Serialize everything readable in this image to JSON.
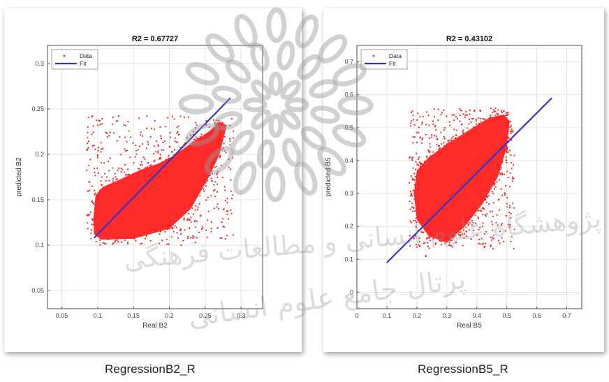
{
  "chart_data": [
    {
      "type": "scatter",
      "title": "R2 = 0.67727",
      "xlabel": "Real B2",
      "ylabel": "predicted B2",
      "xlim": [
        0.03,
        0.33
      ],
      "ylim": [
        0.03,
        0.32
      ],
      "xticks": [
        0.05,
        0.1,
        0.15,
        0.2,
        0.25,
        0.3
      ],
      "xtick_labels": [
        "0.05",
        "0.1",
        "0.15",
        "0.2",
        "0.25",
        "0.3"
      ],
      "yticks": [
        0.05,
        0.1,
        0.15,
        0.2,
        0.25,
        0.3
      ],
      "ytick_labels": [
        "0.05",
        "0.1",
        "0.15",
        "0.2",
        "0.25",
        "0.3"
      ],
      "grid": true,
      "legend_position": "top-left",
      "series": [
        {
          "name": "Data",
          "kind": "points",
          "color": "#ff1a1a",
          "cloud_outline": [
            [
              0.095,
              0.112
            ],
            [
              0.105,
              0.106
            ],
            [
              0.15,
              0.107
            ],
            [
              0.2,
              0.118
            ],
            [
              0.23,
              0.14
            ],
            [
              0.255,
              0.175
            ],
            [
              0.27,
              0.2
            ],
            [
              0.28,
              0.232
            ],
            [
              0.27,
              0.236
            ],
            [
              0.255,
              0.225
            ],
            [
              0.23,
              0.212
            ],
            [
              0.205,
              0.198
            ],
            [
              0.185,
              0.19
            ],
            [
              0.16,
              0.183
            ],
            [
              0.13,
              0.172
            ],
            [
              0.107,
              0.164
            ],
            [
              0.097,
              0.155
            ],
            [
              0.094,
              0.13
            ]
          ],
          "sample_points": [
            [
              0.27,
              0.228
            ],
            [
              0.265,
              0.233
            ],
            [
              0.258,
              0.222
            ],
            [
              0.24,
              0.205
            ],
            [
              0.2,
              0.122
            ],
            [
              0.1,
              0.118
            ]
          ]
        },
        {
          "name": "Fit",
          "kind": "line",
          "color": "#3333cc",
          "x": [
            0.095,
            0.285
          ],
          "y": [
            0.108,
            0.262
          ]
        }
      ]
    },
    {
      "type": "scatter",
      "title": "R2 = 0.43102",
      "xlabel": "Real B5",
      "ylabel": "predicted B5",
      "xlim": [
        0.0,
        0.75
      ],
      "ylim": [
        -0.05,
        0.75
      ],
      "xticks": [
        0.0,
        0.1,
        0.2,
        0.3,
        0.4,
        0.5,
        0.6,
        0.7
      ],
      "xtick_labels": [
        "0",
        "0.1",
        "0.2",
        "0.3",
        "0.4",
        "0.5",
        "0.6",
        "0.7"
      ],
      "yticks": [
        0.0,
        0.1,
        0.2,
        0.3,
        0.4,
        0.5,
        0.6,
        0.7
      ],
      "ytick_labels": [
        "0",
        "0.1",
        "0.2",
        "0.3",
        "0.4",
        "0.5",
        "0.6",
        "0.7"
      ],
      "grid": true,
      "legend_position": "top-left",
      "series": [
        {
          "name": "Data",
          "kind": "points",
          "color": "#ff1a1a",
          "cloud_outline": [
            [
              0.19,
              0.3
            ],
            [
              0.2,
              0.22
            ],
            [
              0.24,
              0.17
            ],
            [
              0.3,
              0.15
            ],
            [
              0.36,
              0.2
            ],
            [
              0.42,
              0.27
            ],
            [
              0.47,
              0.35
            ],
            [
              0.5,
              0.44
            ],
            [
              0.51,
              0.52
            ],
            [
              0.49,
              0.54
            ],
            [
              0.44,
              0.53
            ],
            [
              0.37,
              0.49
            ],
            [
              0.3,
              0.45
            ],
            [
              0.24,
              0.41
            ],
            [
              0.2,
              0.37
            ]
          ],
          "sample_points": [
            [
              0.5,
              0.545
            ],
            [
              0.49,
              0.55
            ],
            [
              0.47,
              0.54
            ],
            [
              0.23,
              0.11
            ],
            [
              0.21,
              0.14
            ],
            [
              0.35,
              0.51
            ]
          ]
        },
        {
          "name": "Fit",
          "kind": "line",
          "color": "#3333cc",
          "x": [
            0.1,
            0.65
          ],
          "y": [
            0.09,
            0.59
          ]
        }
      ]
    }
  ],
  "captions": {
    "left": "RegressionB2_R",
    "right": "RegressionB5_R"
  },
  "watermark_text": "پرتال جامع علوم انسانی  پژوهشگاه علوم انسانی و مطالعات فرهنگی"
}
